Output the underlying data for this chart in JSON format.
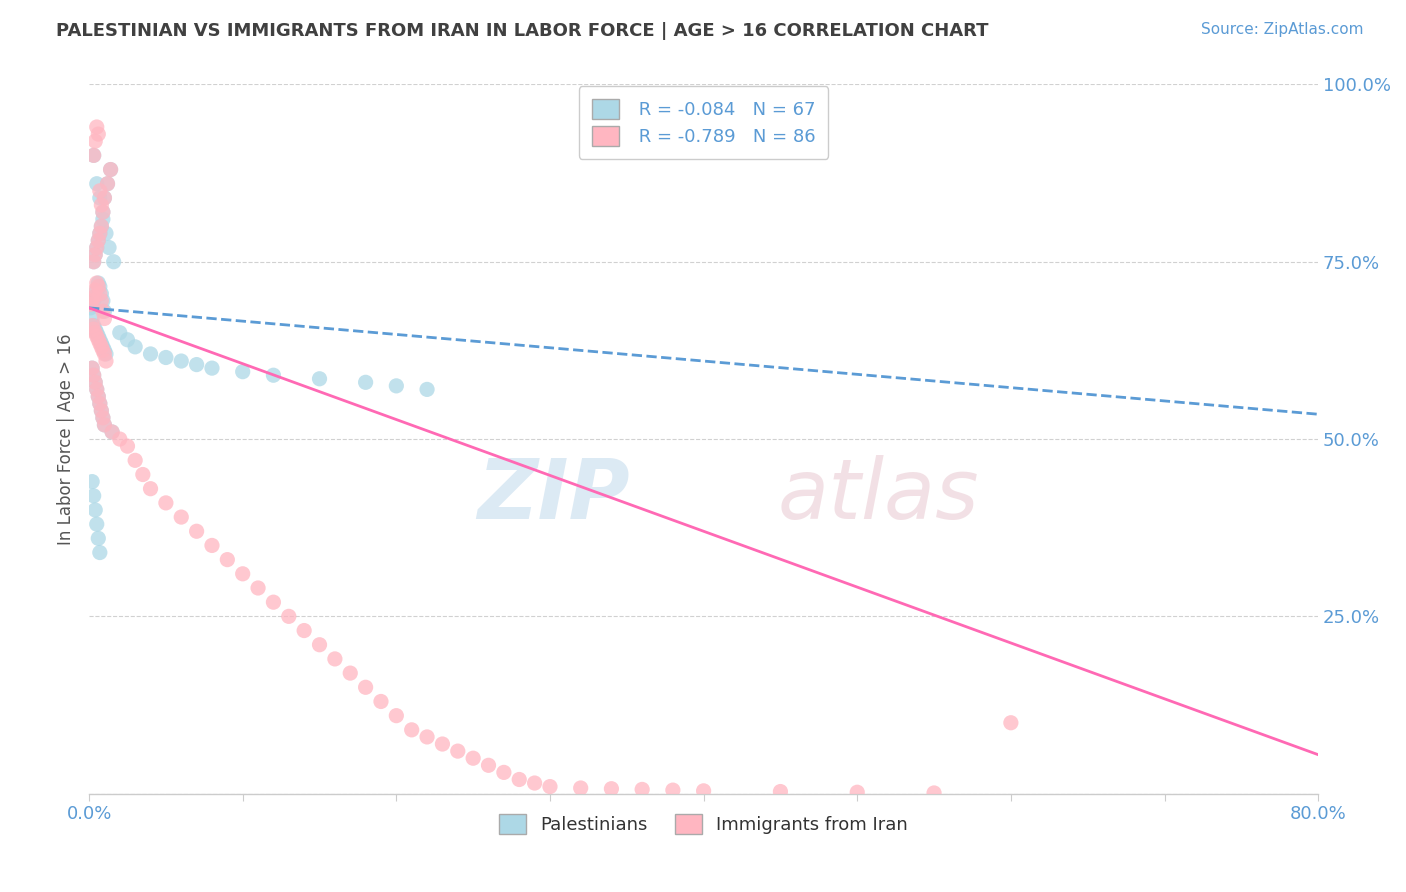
{
  "title": "PALESTINIAN VS IMMIGRANTS FROM IRAN IN LABOR FORCE | AGE > 16 CORRELATION CHART",
  "source": "Source: ZipAtlas.com",
  "ylabel": "In Labor Force | Age > 16",
  "xlim": [
    0.0,
    0.8
  ],
  "ylim": [
    0.0,
    1.0
  ],
  "xticks": [
    0.0,
    0.1,
    0.2,
    0.3,
    0.4,
    0.5,
    0.6,
    0.7,
    0.8
  ],
  "xticklabels": [
    "0.0%",
    "",
    "",
    "",
    "",
    "",
    "",
    "",
    "80.0%"
  ],
  "yticks": [
    0.0,
    0.25,
    0.5,
    0.75,
    1.0
  ],
  "yticklabels": [
    "",
    "25.0%",
    "50.0%",
    "75.0%",
    "100.0%"
  ],
  "legend_r1": "R = -0.084",
  "legend_n1": "N = 67",
  "legend_r2": "R = -0.789",
  "legend_n2": "N = 86",
  "color_palestinian": "#ADD8E6",
  "color_iran": "#FFB6C1",
  "color_trend_palestinian": "#5B9BD5",
  "color_trend_iran": "#FF69B4",
  "color_axis_labels": "#5B9BD5",
  "color_title": "#404040",
  "pal_trend_start_y": 0.685,
  "pal_trend_end_y": 0.535,
  "iran_trend_start_y": 0.685,
  "iran_trend_end_y": 0.055,
  "palestinian_x": [
    0.001,
    0.002,
    0.003,
    0.004,
    0.005,
    0.006,
    0.007,
    0.008,
    0.009,
    0.01,
    0.002,
    0.003,
    0.004,
    0.005,
    0.006,
    0.007,
    0.008,
    0.009,
    0.01,
    0.011,
    0.003,
    0.004,
    0.005,
    0.006,
    0.007,
    0.008,
    0.009,
    0.01,
    0.012,
    0.014,
    0.002,
    0.003,
    0.004,
    0.005,
    0.006,
    0.007,
    0.008,
    0.009,
    0.01,
    0.015,
    0.002,
    0.003,
    0.004,
    0.005,
    0.006,
    0.007,
    0.02,
    0.025,
    0.03,
    0.04,
    0.05,
    0.06,
    0.07,
    0.08,
    0.1,
    0.12,
    0.15,
    0.18,
    0.2,
    0.22,
    0.003,
    0.005,
    0.007,
    0.009,
    0.011,
    0.013,
    0.016
  ],
  "palestinian_y": [
    0.685,
    0.69,
    0.695,
    0.7,
    0.71,
    0.72,
    0.715,
    0.705,
    0.695,
    0.68,
    0.67,
    0.66,
    0.655,
    0.65,
    0.645,
    0.64,
    0.635,
    0.63,
    0.625,
    0.62,
    0.75,
    0.76,
    0.77,
    0.78,
    0.79,
    0.8,
    0.82,
    0.84,
    0.86,
    0.88,
    0.6,
    0.59,
    0.58,
    0.57,
    0.56,
    0.55,
    0.54,
    0.53,
    0.52,
    0.51,
    0.44,
    0.42,
    0.4,
    0.38,
    0.36,
    0.34,
    0.65,
    0.64,
    0.63,
    0.62,
    0.615,
    0.61,
    0.605,
    0.6,
    0.595,
    0.59,
    0.585,
    0.58,
    0.575,
    0.57,
    0.9,
    0.86,
    0.84,
    0.81,
    0.79,
    0.77,
    0.75
  ],
  "iran_x": [
    0.001,
    0.002,
    0.003,
    0.004,
    0.005,
    0.006,
    0.007,
    0.008,
    0.009,
    0.01,
    0.002,
    0.003,
    0.004,
    0.005,
    0.006,
    0.007,
    0.008,
    0.009,
    0.01,
    0.011,
    0.003,
    0.004,
    0.005,
    0.006,
    0.007,
    0.008,
    0.009,
    0.01,
    0.012,
    0.014,
    0.002,
    0.003,
    0.004,
    0.005,
    0.006,
    0.007,
    0.008,
    0.009,
    0.01,
    0.015,
    0.02,
    0.025,
    0.03,
    0.035,
    0.04,
    0.05,
    0.06,
    0.07,
    0.08,
    0.09,
    0.1,
    0.11,
    0.12,
    0.13,
    0.14,
    0.15,
    0.16,
    0.17,
    0.18,
    0.19,
    0.2,
    0.21,
    0.22,
    0.23,
    0.24,
    0.25,
    0.26,
    0.27,
    0.28,
    0.29,
    0.3,
    0.32,
    0.34,
    0.36,
    0.38,
    0.4,
    0.45,
    0.5,
    0.55,
    0.6,
    0.003,
    0.004,
    0.005,
    0.006,
    0.007,
    0.008
  ],
  "iran_y": [
    0.69,
    0.695,
    0.7,
    0.71,
    0.72,
    0.715,
    0.705,
    0.695,
    0.68,
    0.67,
    0.66,
    0.655,
    0.65,
    0.645,
    0.64,
    0.635,
    0.63,
    0.625,
    0.62,
    0.61,
    0.75,
    0.76,
    0.77,
    0.78,
    0.79,
    0.8,
    0.82,
    0.84,
    0.86,
    0.88,
    0.6,
    0.59,
    0.58,
    0.57,
    0.56,
    0.55,
    0.54,
    0.53,
    0.52,
    0.51,
    0.5,
    0.49,
    0.47,
    0.45,
    0.43,
    0.41,
    0.39,
    0.37,
    0.35,
    0.33,
    0.31,
    0.29,
    0.27,
    0.25,
    0.23,
    0.21,
    0.19,
    0.17,
    0.15,
    0.13,
    0.11,
    0.09,
    0.08,
    0.07,
    0.06,
    0.05,
    0.04,
    0.03,
    0.02,
    0.015,
    0.01,
    0.008,
    0.007,
    0.006,
    0.005,
    0.004,
    0.003,
    0.002,
    0.001,
    0.1,
    0.9,
    0.92,
    0.94,
    0.93,
    0.85,
    0.83
  ]
}
